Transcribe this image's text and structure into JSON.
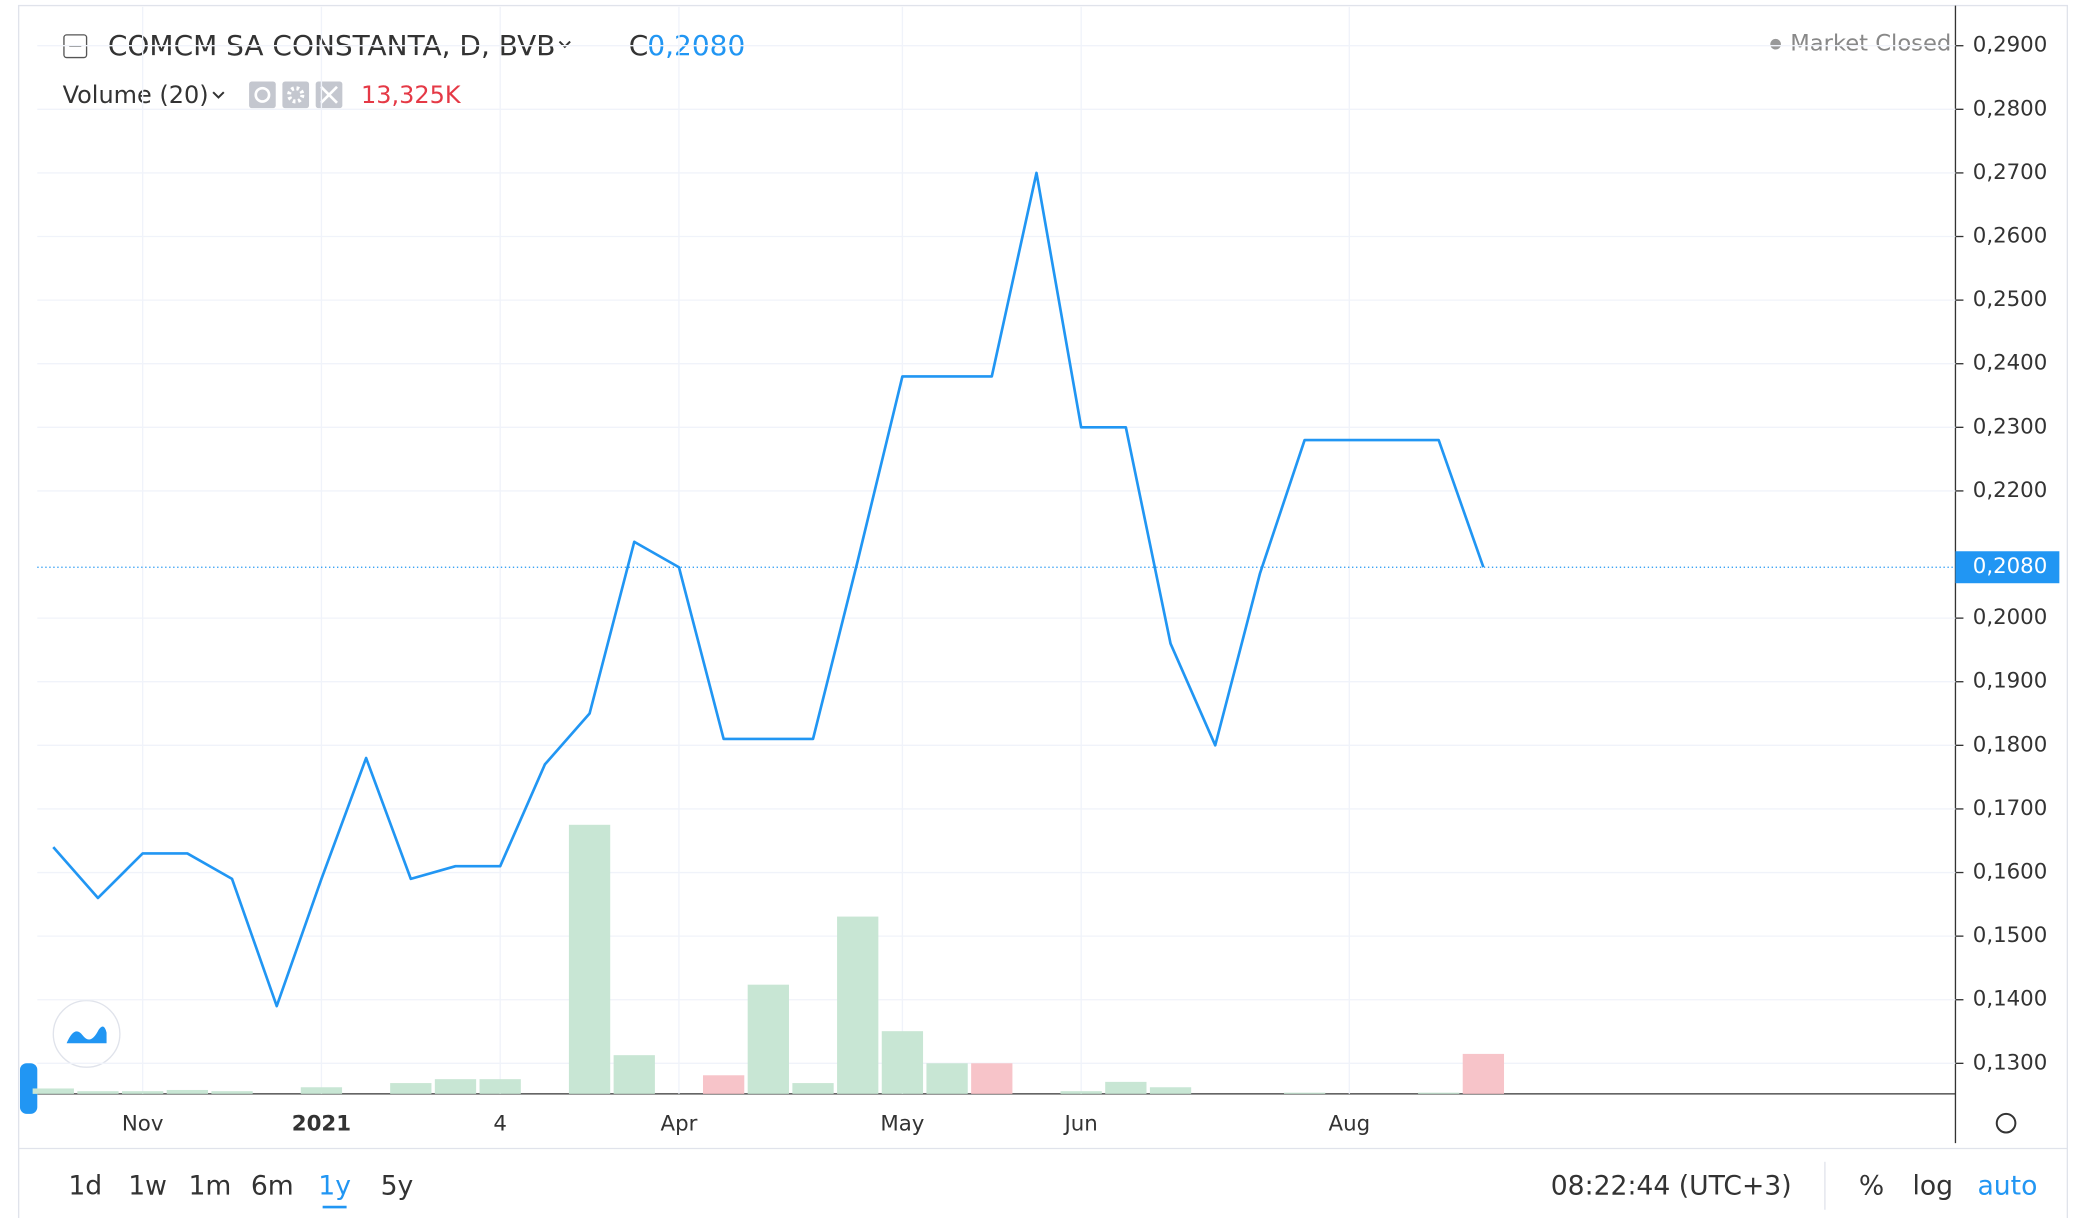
{
  "chart_data": {
    "type": "line",
    "title": "COMCM SA CONSTANTA, D, BVB",
    "close_prefix": "C",
    "last_price": {
      "value": 0.208,
      "label": "0,2080"
    },
    "status": "Market Closed",
    "volume_title": "Volume (20)",
    "volume_label": "13,325K",
    "categories": [
      null,
      null,
      "Nov",
      null,
      null,
      null,
      "2021",
      null,
      null,
      null,
      "4",
      null,
      null,
      null,
      "Apr",
      null,
      null,
      null,
      null,
      "May",
      null,
      null,
      null,
      "Jun",
      null,
      null,
      null,
      null,
      null,
      "Aug",
      null,
      null,
      null
    ],
    "series": [
      {
        "name": "Price",
        "color": "#2196f3",
        "values": [
          0.164,
          0.156,
          0.163,
          0.163,
          0.159,
          0.139,
          0.159,
          0.178,
          0.159,
          0.161,
          0.161,
          0.177,
          0.185,
          0.212,
          0.208,
          0.181,
          0.181,
          0.181,
          0.209,
          0.238,
          0.238,
          0.238,
          0.27,
          0.23,
          0.23,
          0.196,
          0.18,
          0.207,
          0.228,
          0.228,
          0.228,
          0.228,
          0.208
        ]
      },
      {
        "name": "Volume",
        "values": [
          1.8,
          0.9,
          0.9,
          1.3,
          0.9,
          0,
          2.2,
          0,
          3.6,
          4.9,
          4.9,
          0,
          89.7,
          12.9,
          0,
          6.2,
          36.4,
          3.6,
          59.1,
          20.9,
          10.2,
          10.2,
          0,
          0.9,
          4.0,
          2.2,
          0,
          0,
          0.4,
          0,
          0,
          0.4,
          13.325
        ],
        "colors": [
          "#c8e6d4",
          "#c8e6d4",
          "#c8e6d4",
          "#c8e6d4",
          "#c8e6d4",
          "#c8e6d4",
          "#c8e6d4",
          "#c8e6d4",
          "#c8e6d4",
          "#c8e6d4",
          "#c8e6d4",
          "#c8e6d4",
          "#c8e6d4",
          "#c8e6d4",
          "#c8e6d4",
          "#f7c4c9",
          "#c8e6d4",
          "#c8e6d4",
          "#c8e6d4",
          "#c8e6d4",
          "#c8e6d4",
          "#f7c4c9",
          "#c8e6d4",
          "#c8e6d4",
          "#c8e6d4",
          "#c8e6d4",
          "#c8e6d4",
          "#c8e6d4",
          "#c8e6d4",
          "#c8e6d4",
          "#c8e6d4",
          "#c8e6d4",
          "#f7c4c9"
        ]
      }
    ],
    "ylim": [
      0.1252,
      0.2961
    ],
    "yticks": [
      {
        "value": 0.13,
        "label": "0,1300"
      },
      {
        "value": 0.14,
        "label": "0,1400"
      },
      {
        "value": 0.15,
        "label": "0,1500"
      },
      {
        "value": 0.16,
        "label": "0,1600"
      },
      {
        "value": 0.17,
        "label": "0,1700"
      },
      {
        "value": 0.18,
        "label": "0,1800"
      },
      {
        "value": 0.19,
        "label": "0,1900"
      },
      {
        "value": 0.2,
        "label": "0,2000"
      },
      {
        "value": 0.22,
        "label": "0,2200"
      },
      {
        "value": 0.23,
        "label": "0,2300"
      },
      {
        "value": 0.24,
        "label": "0,2400"
      },
      {
        "value": 0.25,
        "label": "0,2500"
      },
      {
        "value": 0.26,
        "label": "0,2600"
      },
      {
        "value": 0.27,
        "label": "0,2700"
      },
      {
        "value": 0.28,
        "label": "0,2800"
      },
      {
        "value": 0.29,
        "label": "0,2900"
      }
    ],
    "grid": true,
    "ranges": [
      "1d",
      "1w",
      "1m",
      "6m",
      "1y",
      "5y"
    ],
    "active_range": "1y",
    "clock": "08:22:44 (UTC+3)",
    "scale_options": [
      "%",
      "log",
      "auto"
    ]
  }
}
